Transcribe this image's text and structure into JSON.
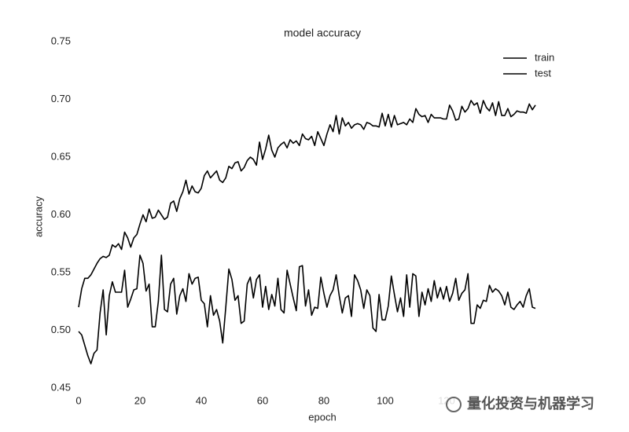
{
  "chart_data": {
    "type": "line",
    "title": "model accuracy",
    "x_label": "epoch",
    "y_label": "accuracy",
    "x": [
      0,
      1,
      2,
      3,
      4,
      5,
      6,
      7,
      8,
      9,
      10,
      11,
      12,
      13,
      14,
      15,
      16,
      17,
      18,
      19,
      20,
      21,
      22,
      23,
      24,
      25,
      26,
      27,
      28,
      29,
      30,
      31,
      32,
      33,
      34,
      35,
      36,
      37,
      38,
      39,
      40,
      41,
      42,
      43,
      44,
      45,
      46,
      47,
      48,
      49,
      50,
      51,
      52,
      53,
      54,
      55,
      56,
      57,
      58,
      59,
      60,
      61,
      62,
      63,
      64,
      65,
      66,
      67,
      68,
      69,
      70,
      71,
      72,
      73,
      74,
      75,
      76,
      77,
      78,
      79,
      80,
      81,
      82,
      83,
      84,
      85,
      86,
      87,
      88,
      89,
      90,
      91,
      92,
      93,
      94,
      95,
      96,
      97,
      98,
      99,
      100,
      101,
      102,
      103,
      104,
      105,
      106,
      107,
      108,
      109,
      110,
      111,
      112,
      113,
      114,
      115,
      116,
      117,
      118,
      119,
      120,
      121,
      122,
      123,
      124,
      125,
      126,
      127,
      128,
      129,
      130,
      131,
      132,
      133,
      134,
      135,
      136,
      137,
      138,
      139,
      140,
      141,
      142,
      143,
      144,
      145,
      146,
      147,
      148,
      149
    ],
    "series": [
      {
        "name": "train",
        "color": "#000000",
        "values": [
          0.52,
          0.536,
          0.545,
          0.545,
          0.548,
          0.553,
          0.558,
          0.562,
          0.564,
          0.563,
          0.565,
          0.574,
          0.572,
          0.575,
          0.57,
          0.585,
          0.58,
          0.572,
          0.58,
          0.583,
          0.592,
          0.6,
          0.594,
          0.605,
          0.597,
          0.598,
          0.604,
          0.6,
          0.596,
          0.598,
          0.61,
          0.612,
          0.603,
          0.614,
          0.62,
          0.63,
          0.618,
          0.625,
          0.62,
          0.619,
          0.623,
          0.634,
          0.638,
          0.632,
          0.635,
          0.638,
          0.63,
          0.628,
          0.632,
          0.642,
          0.64,
          0.645,
          0.646,
          0.638,
          0.641,
          0.647,
          0.65,
          0.648,
          0.643,
          0.663,
          0.648,
          0.657,
          0.669,
          0.656,
          0.65,
          0.658,
          0.661,
          0.663,
          0.658,
          0.665,
          0.662,
          0.664,
          0.66,
          0.67,
          0.666,
          0.665,
          0.668,
          0.66,
          0.672,
          0.666,
          0.66,
          0.67,
          0.678,
          0.672,
          0.686,
          0.67,
          0.684,
          0.677,
          0.68,
          0.675,
          0.678,
          0.679,
          0.678,
          0.674,
          0.68,
          0.679,
          0.677,
          0.677,
          0.676,
          0.688,
          0.677,
          0.687,
          0.676,
          0.686,
          0.678,
          0.679,
          0.68,
          0.678,
          0.683,
          0.68,
          0.692,
          0.687,
          0.685,
          0.686,
          0.68,
          0.687,
          0.684,
          0.684,
          0.684,
          0.683,
          0.683,
          0.695,
          0.69,
          0.682,
          0.683,
          0.694,
          0.689,
          0.692,
          0.699,
          0.695,
          0.697,
          0.688,
          0.699,
          0.693,
          0.69,
          0.697,
          0.686,
          0.698,
          0.686,
          0.686,
          0.692,
          0.685,
          0.687,
          0.69,
          0.689,
          0.689,
          0.688,
          0.696,
          0.691,
          0.695
        ]
      },
      {
        "name": "test",
        "color": "#000000",
        "values": [
          0.499,
          0.496,
          0.487,
          0.478,
          0.471,
          0.48,
          0.483,
          0.515,
          0.535,
          0.496,
          0.53,
          0.542,
          0.533,
          0.533,
          0.533,
          0.552,
          0.52,
          0.527,
          0.535,
          0.536,
          0.565,
          0.558,
          0.534,
          0.54,
          0.503,
          0.503,
          0.525,
          0.565,
          0.518,
          0.516,
          0.54,
          0.545,
          0.514,
          0.53,
          0.536,
          0.525,
          0.549,
          0.54,
          0.545,
          0.546,
          0.526,
          0.523,
          0.503,
          0.53,
          0.513,
          0.518,
          0.508,
          0.489,
          0.52,
          0.553,
          0.544,
          0.526,
          0.53,
          0.506,
          0.508,
          0.54,
          0.546,
          0.528,
          0.544,
          0.548,
          0.52,
          0.538,
          0.518,
          0.531,
          0.521,
          0.545,
          0.518,
          0.515,
          0.552,
          0.54,
          0.528,
          0.517,
          0.555,
          0.556,
          0.521,
          0.535,
          0.513,
          0.52,
          0.519,
          0.546,
          0.532,
          0.52,
          0.53,
          0.535,
          0.548,
          0.53,
          0.515,
          0.528,
          0.53,
          0.512,
          0.548,
          0.543,
          0.535,
          0.519,
          0.535,
          0.53,
          0.502,
          0.499,
          0.531,
          0.509,
          0.509,
          0.521,
          0.547,
          0.531,
          0.516,
          0.528,
          0.512,
          0.548,
          0.52,
          0.549,
          0.547,
          0.512,
          0.533,
          0.522,
          0.536,
          0.525,
          0.543,
          0.528,
          0.537,
          0.527,
          0.538,
          0.525,
          0.532,
          0.545,
          0.526,
          0.532,
          0.535,
          0.549,
          0.506,
          0.506,
          0.522,
          0.519,
          0.526,
          0.525,
          0.539,
          0.533,
          0.536,
          0.534,
          0.53,
          0.522,
          0.533,
          0.52,
          0.518,
          0.522,
          0.525,
          0.52,
          0.53,
          0.536,
          0.52,
          0.519
        ]
      }
    ],
    "xlim": [
      0,
      149
    ],
    "ylim": [
      0.45,
      0.75
    ],
    "xticks": [
      0,
      20,
      40,
      60,
      80,
      100,
      120,
      140
    ],
    "yticks": [
      0.45,
      {
        "value": 0.5,
        "label": "0.50"
      },
      0.55,
      {
        "value": 0.6,
        "label": "0.60"
      },
      0.65,
      {
        "value": 0.7,
        "label": "0.70"
      },
      0.75
    ],
    "legend": "upper right"
  },
  "watermark": "量化投资与机器学习"
}
